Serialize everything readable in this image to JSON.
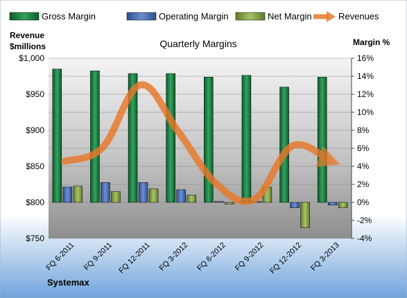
{
  "company": "Systemax",
  "chart_data": {
    "type": "bar",
    "title": "Quarterly Margins",
    "categories": [
      "FQ 6-2011",
      "FQ 9-2011",
      "FQ 12-2011",
      "FQ 3-2012",
      "FQ 6-2012",
      "FQ 9-2012",
      "FQ 12-2012",
      "FQ 3-2013"
    ],
    "left_axis": {
      "label_line1": "Revenue",
      "label_line2": "$millions",
      "range": [
        750,
        1000
      ],
      "ticks": [
        "$750",
        "$800",
        "$850",
        "$900",
        "$950",
        "$1,000"
      ]
    },
    "right_axis": {
      "label": "Margin %",
      "range": [
        -4,
        16
      ],
      "ticks": [
        "-4%",
        "-2%",
        "0%",
        "2%",
        "4%",
        "6%",
        "8%",
        "10%",
        "12%",
        "14%",
        "16%"
      ]
    },
    "series": [
      {
        "name": "Gross Margin",
        "axis": "right",
        "kind": "bar",
        "color": "#1f7a45",
        "values": [
          14.8,
          14.6,
          14.3,
          14.3,
          13.9,
          14.1,
          12.8,
          13.9
        ]
      },
      {
        "name": "Operating Margin",
        "axis": "right",
        "kind": "bar",
        "color": "#4a6fb0",
        "values": [
          1.7,
          2.2,
          2.2,
          1.4,
          0.1,
          0.1,
          -0.6,
          -0.3
        ]
      },
      {
        "name": "Net Margin",
        "axis": "right",
        "kind": "bar",
        "color": "#8aa64a",
        "values": [
          1.8,
          1.2,
          1.5,
          0.8,
          -0.2,
          1.7,
          -2.8,
          -0.6
        ]
      },
      {
        "name": "Revenues",
        "axis": "left",
        "kind": "line",
        "color": "#e8782a",
        "values": [
          857,
          876,
          963,
          898,
          826,
          804,
          878,
          858
        ]
      }
    ],
    "legend_position": "top",
    "grid": true
  }
}
